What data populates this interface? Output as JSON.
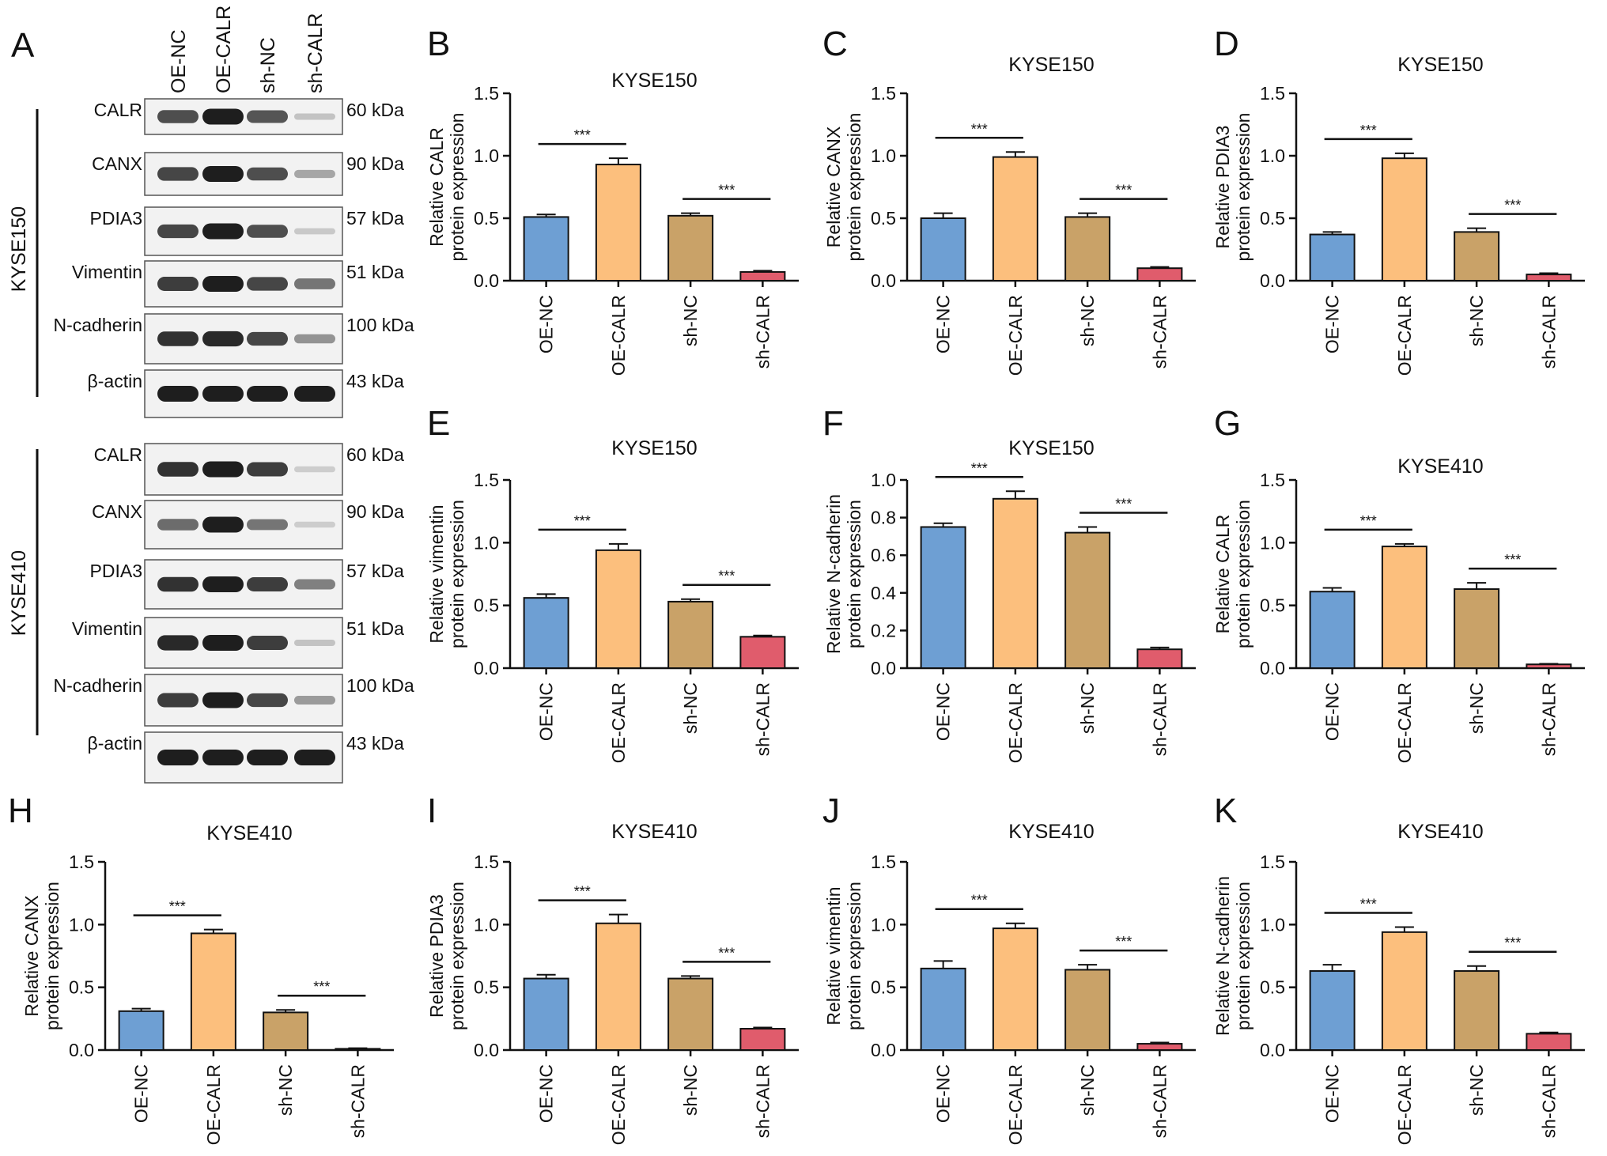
{
  "colors": {
    "bars": [
      "#6e9fd3",
      "#fcbf7d",
      "#c9a268",
      "#e05c6c"
    ],
    "axis": "#111111",
    "blot_bg": "#f2f2f2",
    "band": "#1a1a1a"
  },
  "blot": {
    "letter": "A",
    "lanes": [
      "OE-NC",
      "OE-CALR",
      "sh-NC",
      "sh-CALR"
    ],
    "groups": [
      {
        "cell_line": "KYSE150",
        "rows": [
          {
            "protein": "CALR",
            "size": "60 kDa",
            "intensity": [
              0.75,
              1.0,
              0.72,
              0.15
            ]
          },
          {
            "protein": "CANX",
            "size": "90 kDa",
            "intensity": [
              0.8,
              1.0,
              0.75,
              0.3
            ]
          },
          {
            "protein": "PDIA3",
            "size": "57 kDa",
            "intensity": [
              0.8,
              1.0,
              0.75,
              0.12
            ]
          },
          {
            "protein": "Vimentin",
            "size": "51 kDa",
            "intensity": [
              0.85,
              1.0,
              0.8,
              0.55
            ]
          },
          {
            "protein": "N-cadherin",
            "size": "100 kDa",
            "intensity": [
              0.9,
              0.95,
              0.8,
              0.4
            ]
          },
          {
            "protein": "β-actin",
            "size": "43 kDa",
            "intensity": [
              1.0,
              1.0,
              1.0,
              1.0
            ]
          }
        ]
      },
      {
        "cell_line": "KYSE410",
        "rows": [
          {
            "protein": "CALR",
            "size": "60 kDa",
            "intensity": [
              0.9,
              1.0,
              0.85,
              0.1
            ]
          },
          {
            "protein": "CANX",
            "size": "90 kDa",
            "intensity": [
              0.6,
              1.0,
              0.55,
              0.1
            ]
          },
          {
            "protein": "PDIA3",
            "size": "57 kDa",
            "intensity": [
              0.9,
              1.0,
              0.85,
              0.5
            ]
          },
          {
            "protein": "Vimentin",
            "size": "51 kDa",
            "intensity": [
              0.95,
              1.0,
              0.85,
              0.15
            ]
          },
          {
            "protein": "N-cadherin",
            "size": "100 kDa",
            "intensity": [
              0.85,
              1.0,
              0.8,
              0.35
            ]
          },
          {
            "protein": "β-actin",
            "size": "43 kDa",
            "intensity": [
              1.0,
              1.0,
              1.0,
              1.0
            ]
          }
        ]
      }
    ]
  },
  "chart_data": [
    {
      "letter": "B",
      "type": "bar",
      "title": "KYSE150",
      "ylabel": [
        "Relative CALR",
        "protein expression"
      ],
      "categories": [
        "OE-NC",
        "OE-CALR",
        "sh-NC",
        "sh-CALR"
      ],
      "values": [
        0.51,
        0.93,
        0.52,
        0.07
      ],
      "errors": [
        0.02,
        0.05,
        0.02,
        0.01
      ],
      "ylim": [
        0,
        1.5
      ],
      "yticks": [
        "0.0",
        "0.5",
        "1.0",
        "1.5"
      ],
      "significance": [
        "***",
        "***"
      ]
    },
    {
      "letter": "C",
      "type": "bar",
      "title": "KYSE150",
      "ylabel": [
        "Relative CANX",
        "protein expression"
      ],
      "categories": [
        "OE-NC",
        "OE-CALR",
        "sh-NC",
        "sh-CALR"
      ],
      "values": [
        0.5,
        0.99,
        0.51,
        0.1
      ],
      "errors": [
        0.04,
        0.04,
        0.03,
        0.01
      ],
      "ylim": [
        0,
        1.5
      ],
      "yticks": [
        "0.0",
        "0.5",
        "1.0",
        "1.5"
      ],
      "significance": [
        "***",
        "***"
      ]
    },
    {
      "letter": "D",
      "type": "bar",
      "title": "KYSE150",
      "ylabel": [
        "Relative PDIA3",
        "protein expression"
      ],
      "categories": [
        "OE-NC",
        "OE-CALR",
        "sh-NC",
        "sh-CALR"
      ],
      "values": [
        0.37,
        0.98,
        0.39,
        0.05
      ],
      "errors": [
        0.02,
        0.04,
        0.03,
        0.01
      ],
      "ylim": [
        0,
        1.5
      ],
      "yticks": [
        "0.0",
        "0.5",
        "1.0",
        "1.5"
      ],
      "significance": [
        "***",
        "***"
      ]
    },
    {
      "letter": "E",
      "type": "bar",
      "title": "KYSE150",
      "ylabel": [
        "Relative vimentin",
        "protein expression"
      ],
      "categories": [
        "OE-NC",
        "OE-CALR",
        "sh-NC",
        "sh-CALR"
      ],
      "values": [
        0.56,
        0.94,
        0.53,
        0.25
      ],
      "errors": [
        0.03,
        0.05,
        0.02,
        0.01
      ],
      "ylim": [
        0,
        1.5
      ],
      "yticks": [
        "0.0",
        "0.5",
        "1.0",
        "1.5"
      ],
      "significance": [
        "***",
        "***"
      ]
    },
    {
      "letter": "F",
      "type": "bar",
      "title": "KYSE150",
      "ylabel": [
        "Relative N-cadherin",
        "protein expression"
      ],
      "categories": [
        "OE-NC",
        "OE-CALR",
        "sh-NC",
        "sh-CALR"
      ],
      "values": [
        0.75,
        0.9,
        0.72,
        0.1
      ],
      "errors": [
        0.02,
        0.04,
        0.03,
        0.01
      ],
      "ylim": [
        0,
        1.0
      ],
      "yticks": [
        "0.0",
        "0.2",
        "0.4",
        "0.6",
        "0.8",
        "1.0"
      ],
      "significance": [
        "***",
        "***"
      ]
    },
    {
      "letter": "G",
      "type": "bar",
      "title": "KYSE410",
      "ylabel": [
        "Relative CALR",
        "protein expression"
      ],
      "categories": [
        "OE-NC",
        "OE-CALR",
        "sh-NC",
        "sh-CALR"
      ],
      "values": [
        0.61,
        0.97,
        0.63,
        0.03
      ],
      "errors": [
        0.03,
        0.02,
        0.05,
        0.005
      ],
      "ylim": [
        0,
        1.5
      ],
      "yticks": [
        "0.0",
        "0.5",
        "1.0",
        "1.5"
      ],
      "significance": [
        "***",
        "***"
      ]
    },
    {
      "letter": "H",
      "type": "bar",
      "title": "KYSE410",
      "ylabel": [
        "Relative CANX",
        "protein expression"
      ],
      "categories": [
        "OE-NC",
        "OE-CALR",
        "sh-NC",
        "sh-CALR"
      ],
      "values": [
        0.31,
        0.93,
        0.3,
        0.01
      ],
      "errors": [
        0.02,
        0.03,
        0.02,
        0.005
      ],
      "ylim": [
        0,
        1.5
      ],
      "yticks": [
        "0.0",
        "0.5",
        "1.0",
        "1.5"
      ],
      "significance": [
        "***",
        "***"
      ]
    },
    {
      "letter": "I",
      "type": "bar",
      "title": "KYSE410",
      "ylabel": [
        "Relative PDIA3",
        "protein expression"
      ],
      "categories": [
        "OE-NC",
        "OE-CALR",
        "sh-NC",
        "sh-CALR"
      ],
      "values": [
        0.57,
        1.01,
        0.57,
        0.17
      ],
      "errors": [
        0.03,
        0.07,
        0.02,
        0.01
      ],
      "ylim": [
        0,
        1.5
      ],
      "yticks": [
        "0.0",
        "0.5",
        "1.0",
        "1.5"
      ],
      "significance": [
        "***",
        "***"
      ]
    },
    {
      "letter": "J",
      "type": "bar",
      "title": "KYSE410",
      "ylabel": [
        "Relative vimentin",
        "protein expression"
      ],
      "categories": [
        "OE-NC",
        "OE-CALR",
        "sh-NC",
        "sh-CALR"
      ],
      "values": [
        0.65,
        0.97,
        0.64,
        0.05
      ],
      "errors": [
        0.06,
        0.04,
        0.04,
        0.01
      ],
      "ylim": [
        0,
        1.5
      ],
      "yticks": [
        "0.0",
        "0.5",
        "1.0",
        "1.5"
      ],
      "significance": [
        "***",
        "***"
      ]
    },
    {
      "letter": "K",
      "type": "bar",
      "title": "KYSE410",
      "ylabel": [
        "Relative N-cadherin",
        "protein expression"
      ],
      "categories": [
        "OE-NC",
        "OE-CALR",
        "sh-NC",
        "sh-CALR"
      ],
      "values": [
        0.63,
        0.94,
        0.63,
        0.13
      ],
      "errors": [
        0.05,
        0.04,
        0.04,
        0.01
      ],
      "ylim": [
        0,
        1.5
      ],
      "yticks": [
        "0.0",
        "0.5",
        "1.0",
        "1.5"
      ],
      "significance": [
        "***",
        "***"
      ]
    }
  ]
}
